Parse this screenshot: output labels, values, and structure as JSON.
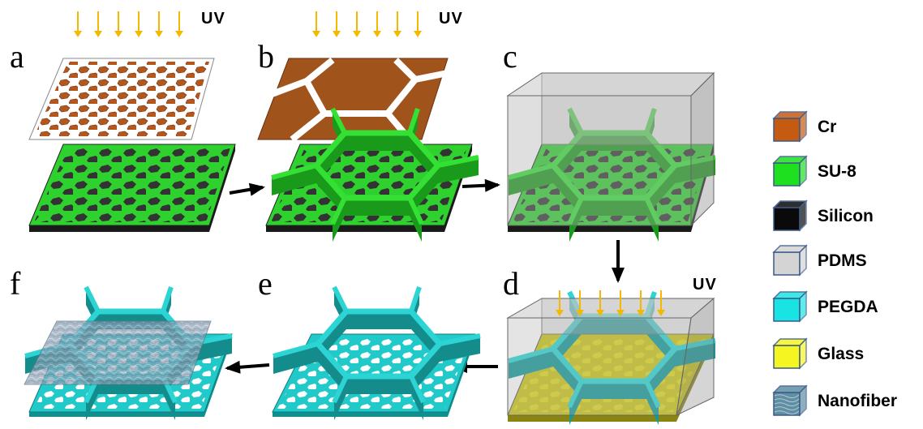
{
  "steps": [
    {
      "letter": "a"
    },
    {
      "letter": "b"
    },
    {
      "letter": "c"
    },
    {
      "letter": "d"
    },
    {
      "letter": "e"
    },
    {
      "letter": "f"
    }
  ],
  "uv_label": "UV",
  "legend": [
    {
      "label": "Cr",
      "color": "#c55a11",
      "icon": "cr-material-icon"
    },
    {
      "label": "SU-8",
      "color": "#1fe01f",
      "icon": "su8-material-icon"
    },
    {
      "label": "Silicon",
      "color": "#0a0a0a",
      "icon": "silicon-material-icon"
    },
    {
      "label": "PDMS",
      "color": "#d4d4d4",
      "icon": "pdms-material-icon"
    },
    {
      "label": "PEGDA",
      "color": "#1ae3e3",
      "icon": "pegda-material-icon"
    },
    {
      "label": "Glass",
      "color": "#f5f521",
      "icon": "glass-material-icon"
    },
    {
      "label": "Nanofiber",
      "color": "#5f8fa3",
      "icon": "nanofiber-material-icon"
    }
  ],
  "colors": {
    "uv_arrow": "#f5b800",
    "flow_arrow": "#000000",
    "cr": "#b5561c",
    "su8": "#2ed12e",
    "su8_dark": "#1a9a1a",
    "silicon": "#1a1a1a",
    "pdms": "#bdbdbd",
    "pegda": "#22c9c9",
    "glass": "#c9c41a",
    "nanofiber": "#8a9fb5"
  }
}
